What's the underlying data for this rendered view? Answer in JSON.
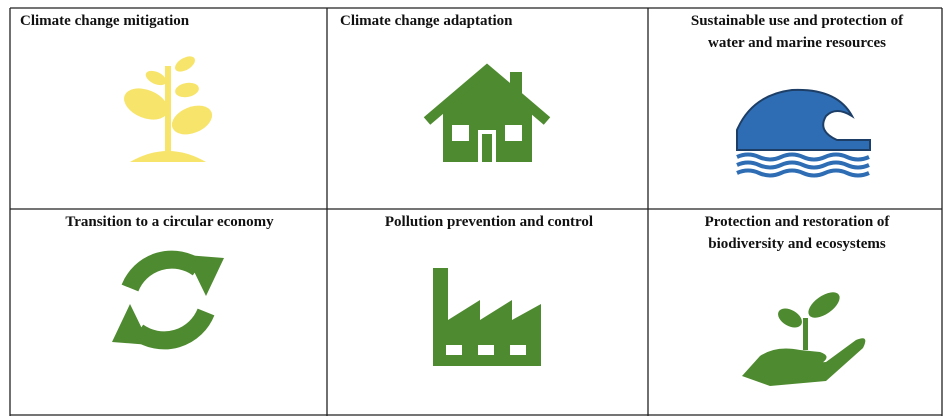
{
  "cells": [
    {
      "title": [
        "Climate change mitigation"
      ]
    },
    {
      "title": [
        "Climate change adaptation"
      ]
    },
    {
      "title": [
        "Sustainable use and protection of",
        "water and marine resources"
      ]
    },
    {
      "title": [
        "Transition to a circular economy"
      ]
    },
    {
      "title": [
        "Pollution prevention and control"
      ]
    },
    {
      "title": [
        "Protection and restoration of",
        "biodiversity and ecosystems"
      ]
    }
  ]
}
